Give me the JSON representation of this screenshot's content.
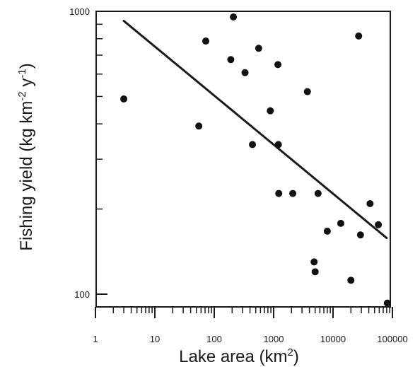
{
  "chart_data": {
    "type": "scatter",
    "xscale": "log",
    "yscale": "log",
    "xlim": [
      1,
      100000
    ],
    "ylim": [
      93,
      1000
    ],
    "xticks": [
      {
        "value": 1,
        "label": "1"
      },
      {
        "value": 10,
        "label": "10"
      },
      {
        "value": 100,
        "label": "100"
      },
      {
        "value": 1000,
        "label": "1000"
      },
      {
        "value": 10000,
        "label": "10000"
      },
      {
        "value": 100000,
        "label": "100000"
      }
    ],
    "yticks": [
      {
        "value": 100,
        "label": "100"
      },
      {
        "value": 1000,
        "label": "1000"
      }
    ],
    "xlabel": {
      "text": "Lake area (km",
      "sup": "2",
      "tail": ")"
    },
    "ylabel": {
      "text": "Fishing yield (kg km",
      "sup1": "-2",
      "mid": " y",
      "sup2": "-1",
      "tail": ")"
    },
    "points": [
      {
        "x": 3,
        "y": 490
      },
      {
        "x": 55,
        "y": 393
      },
      {
        "x": 72,
        "y": 785
      },
      {
        "x": 190,
        "y": 675
      },
      {
        "x": 210,
        "y": 955
      },
      {
        "x": 330,
        "y": 607
      },
      {
        "x": 440,
        "y": 338
      },
      {
        "x": 560,
        "y": 740
      },
      {
        "x": 880,
        "y": 445
      },
      {
        "x": 1180,
        "y": 648
      },
      {
        "x": 1200,
        "y": 338
      },
      {
        "x": 1220,
        "y": 227
      },
      {
        "x": 2100,
        "y": 227
      },
      {
        "x": 3700,
        "y": 520
      },
      {
        "x": 4800,
        "y": 130
      },
      {
        "x": 5000,
        "y": 120
      },
      {
        "x": 5600,
        "y": 227
      },
      {
        "x": 8000,
        "y": 167
      },
      {
        "x": 13500,
        "y": 178
      },
      {
        "x": 20000,
        "y": 112
      },
      {
        "x": 27000,
        "y": 818
      },
      {
        "x": 29000,
        "y": 162
      },
      {
        "x": 42000,
        "y": 209
      },
      {
        "x": 58000,
        "y": 176
      },
      {
        "x": 82000,
        "y": 93
      }
    ],
    "trendline": {
      "x": [
        3,
        80000
      ],
      "y": [
        925,
        158
      ]
    },
    "grid": false,
    "legend": "none"
  }
}
